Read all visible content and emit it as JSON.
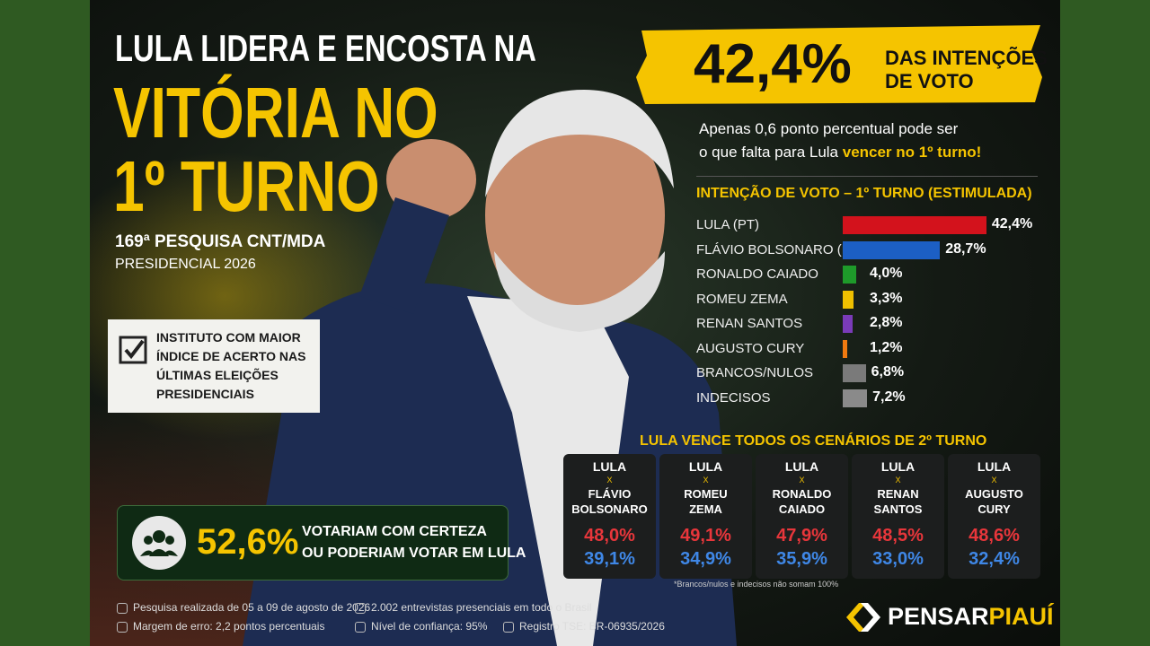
{
  "headline": [
    "LULA LIDERA E ENCOSTA NA",
    "VITÓRIA NO",
    "1º TURNO"
  ],
  "survey": {
    "name": "169ª PESQUISA CNT/MDA",
    "subtitle": "PRESIDENCIAL 2026"
  },
  "badge": [
    "INSTITUTO COM MAIOR",
    "ÍNDICE DE ACERTO NAS",
    "ÚLTIMAS ELEIÇÕES",
    "PRESIDENCIAIS"
  ],
  "certainty": {
    "value": "52,6%",
    "text": [
      "VOTARIAM COM CERTEZA",
      "OU PODERIAM VOTAR EM LULA"
    ]
  },
  "highlight": {
    "value": "42,4%",
    "text": [
      "DAS INTENÇÕES",
      "DE VOTO"
    ]
  },
  "note": [
    "Apenas 0,6 ponto percentual pode ser",
    "o que falta para Lula ",
    "vencer no 1º turno!"
  ],
  "chart_data": {
    "type": "bar",
    "title": "INTENÇÃO DE VOTO – 1º TURNO (ESTIMULADA)",
    "categories": [
      "LULA (PT)",
      "FLÁVIO BOLSONARO (PL)",
      "RONALDO CAIADO",
      "ROMEU ZEMA",
      "RENAN SANTOS",
      "AUGUSTO CURY",
      "BRANCOS/NULOS",
      "INDECISOS"
    ],
    "values": [
      42.4,
      28.7,
      4.0,
      3.3,
      2.8,
      1.2,
      6.8,
      7.2
    ],
    "value_labels": [
      "42,4%",
      "28,7%",
      "4,0%",
      "3,3%",
      "2,8%",
      "1,2%",
      "6,8%",
      "7,2%"
    ],
    "colors": [
      "#d3121c",
      "#1c5fc4",
      "#1e9a2a",
      "#efc000",
      "#7a3bb8",
      "#f07a10",
      "#7a7a7a",
      "#8a8a8a"
    ]
  },
  "second_round": {
    "title": "LULA VENCE TODOS OS CENÁRIOS DE 2º TURNO",
    "versus": "X",
    "cards": [
      {
        "a": "LULA",
        "b": [
          "FLÁVIO",
          "BOLSONARO"
        ],
        "a_pct": "48,0%",
        "b_pct": "39,1%"
      },
      {
        "a": "LULA",
        "b": [
          "ROMEU",
          "ZEMA"
        ],
        "a_pct": "49,1%",
        "b_pct": "34,9%"
      },
      {
        "a": "LULA",
        "b": [
          "RONALDO",
          "CAIADO"
        ],
        "a_pct": "47,9%",
        "b_pct": "35,9%"
      },
      {
        "a": "LULA",
        "b": [
          "RENAN",
          "SANTOS"
        ],
        "a_pct": "48,5%",
        "b_pct": "33,0%"
      },
      {
        "a": "LULA",
        "b": [
          "AUGUSTO",
          "CURY"
        ],
        "a_pct": "48,6%",
        "b_pct": "32,4%"
      }
    ],
    "footnote": "*Brancos/nulos e indecisos não somam 100%"
  },
  "footer": [
    "Pesquisa realizada de 05 a 09 de agosto de 2026",
    "2.002 entrevistas presenciais em todo o Brasil",
    "Margem de erro: 2,2 pontos percentuais",
    "Nível de confiança: 95%",
    "Registro TSE: BR-06935/2026"
  ],
  "brand": [
    "PENSAR",
    "PIAUÍ"
  ]
}
